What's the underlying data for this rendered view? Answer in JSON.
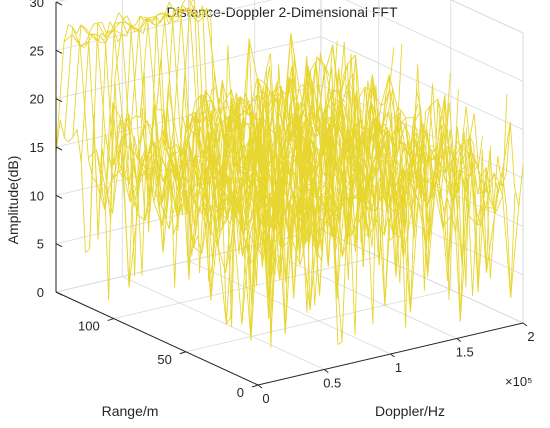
{
  "chart_data": {
    "type": "surface-mesh",
    "title": "Distance-Doppler 2-Dimensional FFT",
    "xlabel": "Doppler/Hz",
    "ylabel": "Range/m",
    "zlabel": "Amplitude(dB)",
    "x_scale_exponent_label": "×10⁵",
    "xlim": [
      0,
      200000
    ],
    "ylim": [
      0,
      140
    ],
    "zlim": [
      0,
      30
    ],
    "x_ticks": [
      0,
      50000,
      100000,
      150000,
      200000
    ],
    "x_tick_labels": [
      "0",
      "0.5",
      "1",
      "1.5",
      "2"
    ],
    "y_ticks": [
      0,
      50,
      100
    ],
    "y_tick_labels": [
      "0",
      "50",
      "100"
    ],
    "z_ticks": [
      0,
      5,
      10,
      15,
      20,
      25,
      30
    ],
    "z_tick_labels": [
      "0",
      "5",
      "10",
      "15",
      "20",
      "25",
      "30"
    ],
    "grid": true,
    "mesh_color": "#e8d630",
    "surface_description": {
      "baseline_amplitude_db": [
        8,
        24
      ],
      "peak_ridge": {
        "range_m": 130,
        "doppler_hz": [
          0,
          100000
        ],
        "amplitude_db": 28
      }
    }
  }
}
